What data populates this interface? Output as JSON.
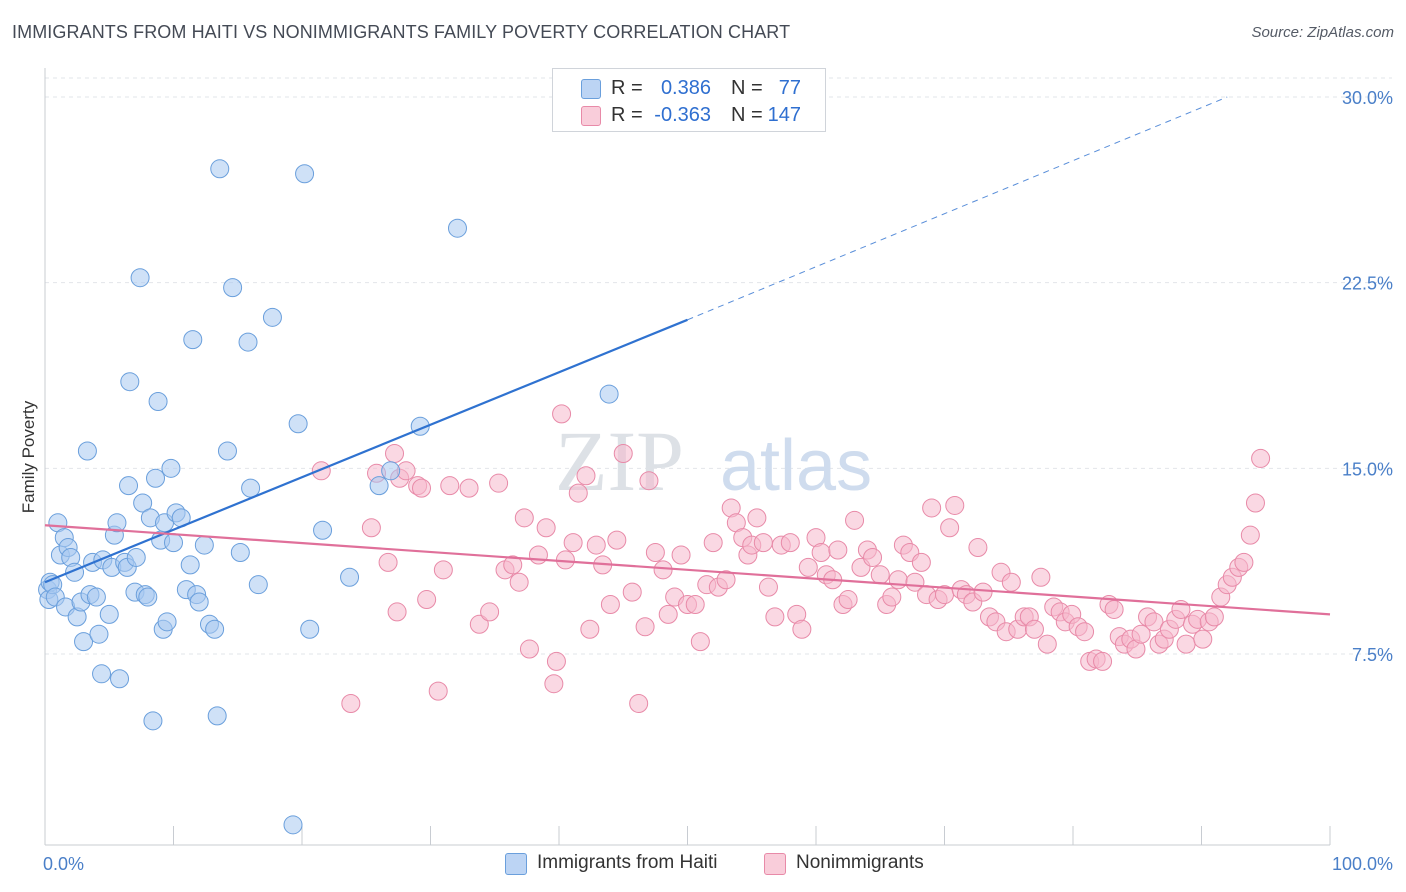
{
  "title": "IMMIGRANTS FROM HAITI VS NONIMMIGRANTS FAMILY POVERTY CORRELATION CHART",
  "source": "Source: ZipAtlas.com",
  "watermark": {
    "zip": "ZIP",
    "atlas": "atlas"
  },
  "legend": {
    "r_label": "R =",
    "n_label": "N =",
    "series1": {
      "r": "0.386",
      "n": "77",
      "color": "#a8c8f0"
    },
    "series2": {
      "r": "-0.363",
      "n": "147",
      "color": "#f6b8cc"
    }
  },
  "bottom_legend": {
    "series1": "Immigrants from Haiti",
    "series2": "Nonimmigrants"
  },
  "chart_data": {
    "type": "scatter",
    "title": "IMMIGRANTS FROM HAITI VS NONIMMIGRANTS FAMILY POVERTY CORRELATION CHART",
    "xlabel": "",
    "ylabel": "Family Poverty",
    "xlim": [
      0,
      100
    ],
    "ylim": [
      0,
      31
    ],
    "x_tick_labels": [
      "0.0%",
      "100.0%"
    ],
    "y_ticks": [
      7.5,
      15.0,
      22.5,
      30.0
    ],
    "y_tick_labels": [
      "7.5%",
      "15.0%",
      "22.5%",
      "30.0%"
    ],
    "colors": {
      "series1_fill": "#a8c8f0",
      "series1_stroke": "#6a9fdc",
      "series1_line": "#2f72d0",
      "series2_fill": "#f6b8cc",
      "series2_stroke": "#e88aa8",
      "series2_line": "#e0709a"
    },
    "series": [
      {
        "name": "Immigrants from Haiti",
        "trend": {
          "x": [
            0,
            50,
            92
          ],
          "y": [
            10.4,
            21.0,
            30.0
          ],
          "solid_until_x": 50
        },
        "points": [
          [
            0.2,
            10.1
          ],
          [
            0.3,
            9.7
          ],
          [
            0.4,
            10.4
          ],
          [
            0.6,
            10.3
          ],
          [
            0.8,
            9.8
          ],
          [
            1.0,
            12.8
          ],
          [
            1.2,
            11.5
          ],
          [
            1.5,
            12.2
          ],
          [
            1.6,
            9.4
          ],
          [
            1.8,
            11.8
          ],
          [
            2.0,
            11.4
          ],
          [
            2.3,
            10.8
          ],
          [
            2.5,
            9.0
          ],
          [
            2.8,
            9.6
          ],
          [
            3.0,
            8.0
          ],
          [
            3.3,
            15.7
          ],
          [
            3.5,
            9.9
          ],
          [
            3.7,
            11.2
          ],
          [
            4.0,
            9.8
          ],
          [
            4.2,
            8.3
          ],
          [
            4.4,
            6.7
          ],
          [
            4.5,
            11.3
          ],
          [
            5.0,
            9.1
          ],
          [
            5.2,
            11.0
          ],
          [
            5.4,
            12.3
          ],
          [
            5.6,
            12.8
          ],
          [
            5.8,
            6.5
          ],
          [
            6.2,
            11.2
          ],
          [
            6.4,
            11.0
          ],
          [
            6.5,
            14.3
          ],
          [
            6.6,
            18.5
          ],
          [
            7.0,
            10.0
          ],
          [
            7.1,
            11.4
          ],
          [
            7.4,
            22.7
          ],
          [
            7.6,
            13.6
          ],
          [
            7.8,
            9.9
          ],
          [
            8.0,
            9.8
          ],
          [
            8.2,
            13.0
          ],
          [
            8.4,
            4.8
          ],
          [
            8.6,
            14.6
          ],
          [
            8.8,
            17.7
          ],
          [
            9.0,
            12.1
          ],
          [
            9.2,
            8.5
          ],
          [
            9.3,
            12.8
          ],
          [
            9.5,
            8.8
          ],
          [
            9.8,
            15.0
          ],
          [
            10.0,
            12.0
          ],
          [
            10.2,
            13.2
          ],
          [
            10.6,
            13.0
          ],
          [
            11.0,
            10.1
          ],
          [
            11.3,
            11.1
          ],
          [
            11.5,
            20.2
          ],
          [
            11.8,
            9.9
          ],
          [
            12.0,
            9.6
          ],
          [
            12.4,
            11.9
          ],
          [
            12.8,
            8.7
          ],
          [
            13.2,
            8.5
          ],
          [
            13.4,
            5.0
          ],
          [
            13.6,
            27.1
          ],
          [
            14.2,
            15.7
          ],
          [
            14.6,
            22.3
          ],
          [
            15.2,
            11.6
          ],
          [
            15.8,
            20.1
          ],
          [
            16.0,
            14.2
          ],
          [
            16.6,
            10.3
          ],
          [
            17.7,
            21.1
          ],
          [
            19.3,
            0.6
          ],
          [
            19.7,
            16.8
          ],
          [
            20.2,
            26.9
          ],
          [
            20.6,
            8.5
          ],
          [
            21.6,
            12.5
          ],
          [
            23.7,
            10.6
          ],
          [
            26.0,
            14.3
          ],
          [
            26.9,
            14.9
          ],
          [
            29.2,
            16.7
          ],
          [
            32.1,
            24.7
          ],
          [
            43.9,
            18.0
          ]
        ]
      },
      {
        "name": "Nonimmigrants",
        "trend": {
          "x": [
            0,
            100
          ],
          "y": [
            12.7,
            9.1
          ]
        },
        "points": [
          [
            21.5,
            14.9
          ],
          [
            23.8,
            5.5
          ],
          [
            25.4,
            12.6
          ],
          [
            25.8,
            14.8
          ],
          [
            26.7,
            11.2
          ],
          [
            27.2,
            15.6
          ],
          [
            27.4,
            9.2
          ],
          [
            27.6,
            14.6
          ],
          [
            28.1,
            14.9
          ],
          [
            29.0,
            14.3
          ],
          [
            29.3,
            14.2
          ],
          [
            29.7,
            9.7
          ],
          [
            30.6,
            6.0
          ],
          [
            31.0,
            10.9
          ],
          [
            31.5,
            14.3
          ],
          [
            33.0,
            14.2
          ],
          [
            33.8,
            8.7
          ],
          [
            34.6,
            9.2
          ],
          [
            35.3,
            14.4
          ],
          [
            35.8,
            10.9
          ],
          [
            36.4,
            11.1
          ],
          [
            36.9,
            10.4
          ],
          [
            37.3,
            13.0
          ],
          [
            37.7,
            7.7
          ],
          [
            38.4,
            11.5
          ],
          [
            39.0,
            12.6
          ],
          [
            39.6,
            6.3
          ],
          [
            39.8,
            7.2
          ],
          [
            40.2,
            17.2
          ],
          [
            40.5,
            11.3
          ],
          [
            41.1,
            12.0
          ],
          [
            41.5,
            14.0
          ],
          [
            42.1,
            14.7
          ],
          [
            42.4,
            8.5
          ],
          [
            42.9,
            11.9
          ],
          [
            43.4,
            11.1
          ],
          [
            44.0,
            9.5
          ],
          [
            44.5,
            12.1
          ],
          [
            45.0,
            15.6
          ],
          [
            45.7,
            10.0
          ],
          [
            46.2,
            5.5
          ],
          [
            46.7,
            8.6
          ],
          [
            47.0,
            14.5
          ],
          [
            47.5,
            11.6
          ],
          [
            48.1,
            10.9
          ],
          [
            48.5,
            9.1
          ],
          [
            49.0,
            9.8
          ],
          [
            49.5,
            11.5
          ],
          [
            50.0,
            9.5
          ],
          [
            50.6,
            9.5
          ],
          [
            51.0,
            8.0
          ],
          [
            51.5,
            10.3
          ],
          [
            52.0,
            12.0
          ],
          [
            52.4,
            10.2
          ],
          [
            53.0,
            10.5
          ],
          [
            53.4,
            13.4
          ],
          [
            53.8,
            12.8
          ],
          [
            54.3,
            12.2
          ],
          [
            54.7,
            11.5
          ],
          [
            55.0,
            11.9
          ],
          [
            55.4,
            13.0
          ],
          [
            55.9,
            12.0
          ],
          [
            56.3,
            10.2
          ],
          [
            56.8,
            9.0
          ],
          [
            57.3,
            11.9
          ],
          [
            58.0,
            12.0
          ],
          [
            58.5,
            9.1
          ],
          [
            58.9,
            8.5
          ],
          [
            59.4,
            11.0
          ],
          [
            60.0,
            12.2
          ],
          [
            60.4,
            11.6
          ],
          [
            60.8,
            10.7
          ],
          [
            61.3,
            10.5
          ],
          [
            61.7,
            11.7
          ],
          [
            62.1,
            9.5
          ],
          [
            62.5,
            9.7
          ],
          [
            63.0,
            12.9
          ],
          [
            63.5,
            11.0
          ],
          [
            64.0,
            11.7
          ],
          [
            64.4,
            11.4
          ],
          [
            65.0,
            10.7
          ],
          [
            65.5,
            9.5
          ],
          [
            65.9,
            9.8
          ],
          [
            66.4,
            10.5
          ],
          [
            66.8,
            11.9
          ],
          [
            67.3,
            11.6
          ],
          [
            67.7,
            10.4
          ],
          [
            68.2,
            11.2
          ],
          [
            68.6,
            9.9
          ],
          [
            69.0,
            13.4
          ],
          [
            69.5,
            9.7
          ],
          [
            70.0,
            9.9
          ],
          [
            70.4,
            12.6
          ],
          [
            70.8,
            13.5
          ],
          [
            71.3,
            10.1
          ],
          [
            71.7,
            9.9
          ],
          [
            72.2,
            9.6
          ],
          [
            72.6,
            11.8
          ],
          [
            73.0,
            10.0
          ],
          [
            73.5,
            9.0
          ],
          [
            74.0,
            8.8
          ],
          [
            74.4,
            10.8
          ],
          [
            74.8,
            8.4
          ],
          [
            75.2,
            10.4
          ],
          [
            75.7,
            8.5
          ],
          [
            76.2,
            9.0
          ],
          [
            76.6,
            9.0
          ],
          [
            77.0,
            8.5
          ],
          [
            77.5,
            10.6
          ],
          [
            78.0,
            7.9
          ],
          [
            78.5,
            9.4
          ],
          [
            79.0,
            9.2
          ],
          [
            79.4,
            8.8
          ],
          [
            79.9,
            9.1
          ],
          [
            80.4,
            8.6
          ],
          [
            80.9,
            8.4
          ],
          [
            81.3,
            7.2
          ],
          [
            81.8,
            7.3
          ],
          [
            82.3,
            7.2
          ],
          [
            82.8,
            9.5
          ],
          [
            83.2,
            9.3
          ],
          [
            83.6,
            8.2
          ],
          [
            84.0,
            7.9
          ],
          [
            84.5,
            8.1
          ],
          [
            84.9,
            7.7
          ],
          [
            85.3,
            8.3
          ],
          [
            85.8,
            9.0
          ],
          [
            86.3,
            8.8
          ],
          [
            86.7,
            7.9
          ],
          [
            87.1,
            8.1
          ],
          [
            87.5,
            8.5
          ],
          [
            88.0,
            8.9
          ],
          [
            88.4,
            9.3
          ],
          [
            88.8,
            7.9
          ],
          [
            89.3,
            8.7
          ],
          [
            89.7,
            8.9
          ],
          [
            90.1,
            8.1
          ],
          [
            90.6,
            8.8
          ],
          [
            91.0,
            9.0
          ],
          [
            91.5,
            9.8
          ],
          [
            92.0,
            10.3
          ],
          [
            92.4,
            10.6
          ],
          [
            92.9,
            11.0
          ],
          [
            93.3,
            11.2
          ],
          [
            93.8,
            12.3
          ],
          [
            94.2,
            13.6
          ],
          [
            94.6,
            15.4
          ]
        ]
      }
    ]
  }
}
